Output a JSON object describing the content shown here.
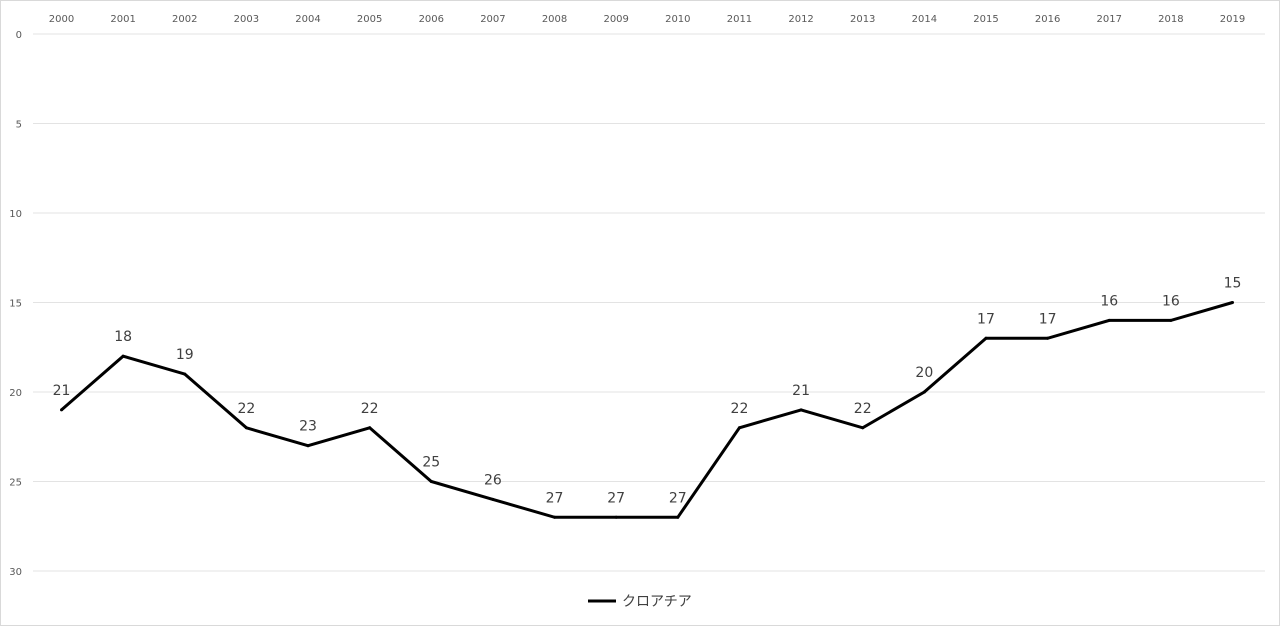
{
  "chart_data": {
    "type": "line",
    "title": "",
    "xlabel": "",
    "ylabel": "",
    "y_axis_reversed": true,
    "x_axis_position": "top",
    "ylim": [
      0,
      30
    ],
    "yticks": [
      0,
      5,
      10,
      15,
      20,
      25,
      30
    ],
    "grid": true,
    "legend_position": "bottom",
    "categories": [
      "2000",
      "2001",
      "2002",
      "2003",
      "2004",
      "2005",
      "2006",
      "2007",
      "2008",
      "2009",
      "2010",
      "2011",
      "2012",
      "2013",
      "2014",
      "2015",
      "2016",
      "2017",
      "2018",
      "2019"
    ],
    "series": [
      {
        "name": "クロアチア",
        "color": "#000000",
        "values": [
          21,
          18,
          19,
          22,
          23,
          22,
          25,
          26,
          27,
          27,
          27,
          22,
          21,
          22,
          20,
          17,
          17,
          16,
          16,
          15
        ]
      }
    ]
  }
}
